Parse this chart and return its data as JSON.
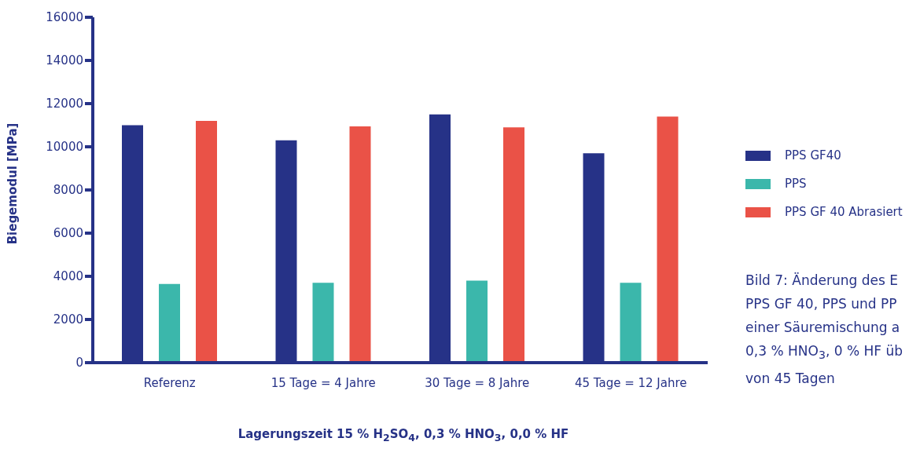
{
  "chart_data": {
    "type": "bar",
    "xlabel": "Lagerungszeit 15 % H$_{2}$SO$_{4}$, 0,3 % HNO$_{3}$, 0,0 % HF",
    "ylabel": "Biegemodul [MPa]",
    "categories": [
      "Referenz",
      "15 Tage = 4 Jahre",
      "30 Tage = 8 Jahre",
      "45 Tage = 12 Jahre"
    ],
    "series": [
      {
        "name": "PPS GF40",
        "color": "#263287",
        "values": [
          11000,
          10300,
          11500,
          9700
        ]
      },
      {
        "name": "PPS",
        "color": "#3bb7ab",
        "values": [
          3650,
          3700,
          3800,
          3700
        ]
      },
      {
        "name": "PPS GF 40 Abrasiert",
        "color": "#ea5247",
        "values": [
          11200,
          10950,
          10900,
          11400
        ]
      }
    ],
    "ylim": [
      0,
      16000
    ],
    "yticks": [
      0,
      2000,
      4000,
      6000,
      8000,
      10000,
      12000,
      14000,
      16000
    ],
    "grid": false,
    "legend": "right",
    "annotations": [
      "Bild 7: Änderung des E\nPPS GF 40, PPS und PP\neiner Säuremischung a\n0,3 % HNO$_{3}$, 0 % HF üb\nvon 45 Tagen"
    ]
  }
}
